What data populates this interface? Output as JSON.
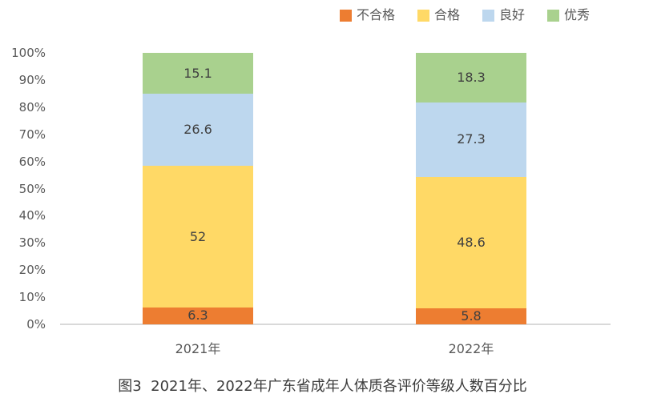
{
  "figure": {
    "caption": "图3  2021年、2022年广东省成年人体质各评价等级人数百分比"
  },
  "chart_data": {
    "type": "bar",
    "subtype": "stacked-100-percent-column",
    "title": "",
    "caption": "图3  2021年、2022年广东省成年人体质各评价等级人数百分比",
    "categories": [
      "2021年",
      "2022年"
    ],
    "series": [
      {
        "key": "fail",
        "name": "不合格",
        "color": "#ED7D31",
        "values": [
          6.3,
          5.8
        ]
      },
      {
        "key": "pass",
        "name": "合格",
        "color": "#FFD966",
        "values": [
          52,
          48.6
        ]
      },
      {
        "key": "good",
        "name": "良好",
        "color": "#BDD7EE",
        "values": [
          26.6,
          27.3
        ]
      },
      {
        "key": "excellent",
        "name": "优秀",
        "color": "#A9D18E",
        "values": [
          15.1,
          18.3
        ]
      }
    ],
    "xlabel": "",
    "ylabel": "",
    "ylim": [
      0,
      100
    ],
    "yticks": [
      "0%",
      "10%",
      "20%",
      "30%",
      "40%",
      "50%",
      "60%",
      "70%",
      "80%",
      "90%",
      "100%"
    ],
    "grid": false,
    "legend_position": "top",
    "data_labels": true
  },
  "colors": {
    "axis_line": "#D9D9D9",
    "tick_label": "#595959",
    "data_label": "#404040",
    "caption": "#3B3B3B",
    "background": "#FFFFFF"
  }
}
